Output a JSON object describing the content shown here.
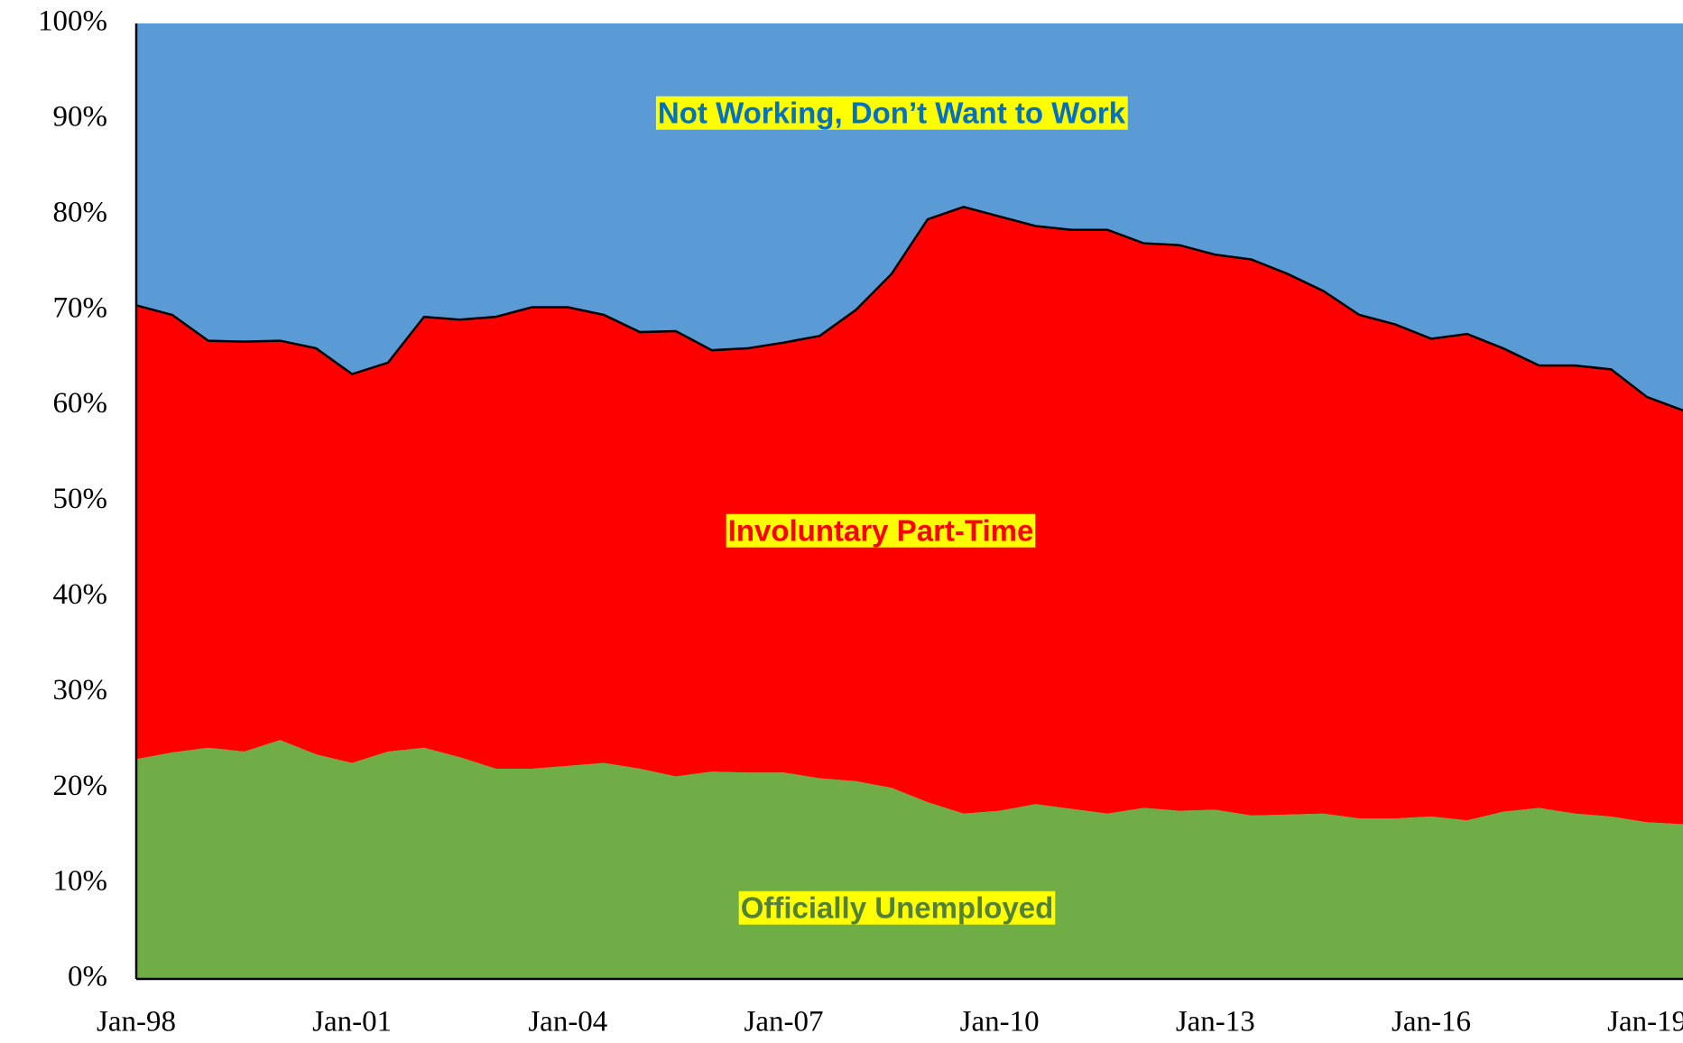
{
  "chart_data": {
    "type": "stacked_area",
    "categories": [
      "Jan-98",
      null,
      null,
      null,
      null,
      null,
      "Jan-01",
      null,
      null,
      null,
      null,
      null,
      "Jan-04",
      null,
      null,
      null,
      null,
      null,
      "Jan-07",
      null,
      null,
      null,
      null,
      null,
      "Jan-10",
      null,
      null,
      null,
      null,
      null,
      "Jan-13",
      null,
      null,
      null,
      null,
      null,
      "Jan-16",
      null,
      null,
      null,
      null,
      null,
      "Jan-19",
      null
    ],
    "series": [
      {
        "name": "Officially Unemployed",
        "color": "#70ad47",
        "label_color": "#538135",
        "values": [
          23.0,
          23.7,
          24.2,
          23.8,
          25.0,
          23.5,
          22.6,
          23.8,
          24.2,
          23.2,
          22.0,
          22.0,
          22.3,
          22.6,
          22.0,
          21.2,
          21.7,
          21.6,
          21.6,
          21.0,
          20.7,
          20.0,
          18.5,
          17.3,
          17.6,
          18.3,
          17.8,
          17.3,
          17.9,
          17.6,
          17.7,
          17.1,
          17.2,
          17.3,
          16.8,
          16.8,
          17.0,
          16.6,
          17.5,
          17.9,
          17.3,
          17.0,
          16.4,
          16.2
        ]
      },
      {
        "name": "Involuntary Part-Time",
        "color": "#ff0000",
        "label_color": "#ff0000",
        "values": [
          47.5,
          45.8,
          42.6,
          42.9,
          41.8,
          42.5,
          40.7,
          40.7,
          45.1,
          45.8,
          47.3,
          48.3,
          48.0,
          46.9,
          45.7,
          46.6,
          44.1,
          44.4,
          45.0,
          46.3,
          49.3,
          53.8,
          61.0,
          63.5,
          62.2,
          60.5,
          60.6,
          61.1,
          59.1,
          59.2,
          58.1,
          58.2,
          56.6,
          54.7,
          52.7,
          51.7,
          50.0,
          50.9,
          48.5,
          46.3,
          46.9,
          46.8,
          44.5,
          43.3
        ]
      },
      {
        "name": "Not Working, Don’t Want to Work",
        "color": "#5b9bd5",
        "label_color": "#0070c0",
        "values": [
          29.5,
          30.5,
          33.2,
          33.3,
          33.2,
          34.0,
          36.7,
          35.5,
          30.7,
          31.0,
          30.7,
          29.7,
          29.7,
          30.5,
          32.3,
          32.2,
          34.2,
          34.0,
          33.4,
          32.7,
          30.0,
          26.2,
          20.5,
          19.2,
          20.2,
          21.2,
          21.6,
          21.6,
          23.0,
          23.2,
          24.2,
          24.7,
          26.2,
          28.0,
          30.5,
          31.5,
          33.0,
          32.5,
          34.0,
          35.8,
          35.8,
          36.2,
          39.1,
          40.5
        ]
      }
    ],
    "ylim": [
      0,
      100
    ],
    "yticks": [
      {
        "value": 0,
        "label": "0%"
      },
      {
        "value": 10,
        "label": "10%"
      },
      {
        "value": 20,
        "label": "20%"
      },
      {
        "value": 30,
        "label": "30%"
      },
      {
        "value": 40,
        "label": "40%"
      },
      {
        "value": 50,
        "label": "50%"
      },
      {
        "value": 60,
        "label": "60%"
      },
      {
        "value": 70,
        "label": "70%"
      },
      {
        "value": 80,
        "label": "80%"
      },
      {
        "value": 90,
        "label": "90%"
      },
      {
        "value": 100,
        "label": "100%"
      }
    ],
    "label_background": "#ffff00",
    "grid": false
  }
}
